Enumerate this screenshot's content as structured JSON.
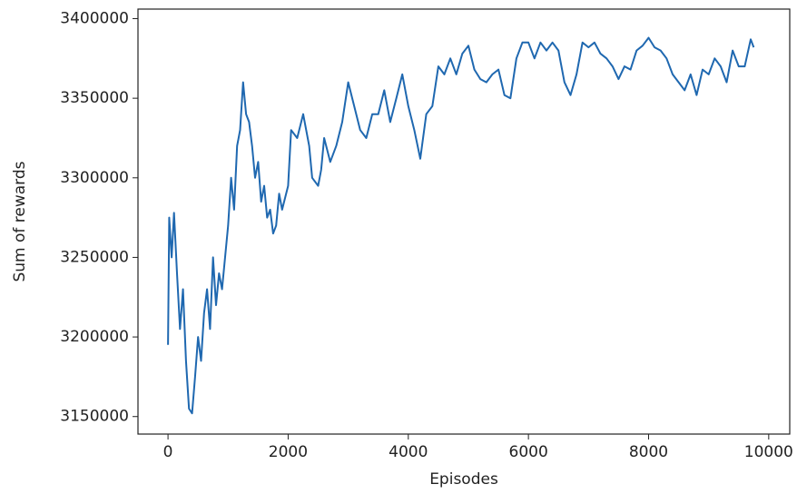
{
  "chart_data": {
    "type": "line",
    "xlabel": "Episodes",
    "ylabel": "Sum of rewards",
    "x": [
      0,
      20,
      60,
      100,
      150,
      200,
      250,
      300,
      350,
      400,
      450,
      500,
      550,
      600,
      650,
      700,
      750,
      800,
      850,
      900,
      1000,
      1050,
      1100,
      1150,
      1200,
      1250,
      1300,
      1350,
      1400,
      1450,
      1500,
      1550,
      1600,
      1650,
      1700,
      1750,
      1800,
      1850,
      1900,
      2000,
      2050,
      2150,
      2250,
      2300,
      2350,
      2400,
      2500,
      2550,
      2600,
      2700,
      2800,
      2900,
      3000,
      3100,
      3200,
      3300,
      3400,
      3500,
      3600,
      3700,
      3800,
      3900,
      4000,
      4100,
      4200,
      4300,
      4400,
      4500,
      4600,
      4700,
      4800,
      4900,
      5000,
      5100,
      5200,
      5300,
      5400,
      5500,
      5600,
      5700,
      5800,
      5900,
      6000,
      6100,
      6200,
      6300,
      6400,
      6500,
      6600,
      6700,
      6800,
      6900,
      7000,
      7100,
      7200,
      7300,
      7400,
      7500,
      7600,
      7700,
      7800,
      7900,
      8000,
      8100,
      8200,
      8300,
      8400,
      8500,
      8600,
      8700,
      8800,
      8900,
      9000,
      9100,
      9200,
      9300,
      9400,
      9500,
      9600,
      9700,
      9750
    ],
    "series": [
      {
        "color": "#1f68b0",
        "values": [
          3195000,
          3275000,
          3250000,
          3278000,
          3240000,
          3205000,
          3230000,
          3185000,
          3155000,
          3152000,
          3175000,
          3200000,
          3185000,
          3215000,
          3230000,
          3205000,
          3250000,
          3220000,
          3240000,
          3230000,
          3270000,
          3300000,
          3280000,
          3320000,
          3330000,
          3360000,
          3340000,
          3335000,
          3320000,
          3300000,
          3310000,
          3285000,
          3295000,
          3275000,
          3280000,
          3265000,
          3270000,
          3290000,
          3280000,
          3295000,
          3330000,
          3325000,
          3340000,
          3330000,
          3320000,
          3300000,
          3295000,
          3305000,
          3325000,
          3310000,
          3320000,
          3335000,
          3360000,
          3345000,
          3330000,
          3325000,
          3340000,
          3340000,
          3355000,
          3335000,
          3350000,
          3365000,
          3345000,
          3330000,
          3312000,
          3340000,
          3345000,
          3370000,
          3365000,
          3375000,
          3365000,
          3378000,
          3383000,
          3368000,
          3362000,
          3360000,
          3365000,
          3368000,
          3352000,
          3350000,
          3375000,
          3385000,
          3385000,
          3375000,
          3385000,
          3380000,
          3385000,
          3380000,
          3360000,
          3352000,
          3365000,
          3385000,
          3382000,
          3385000,
          3378000,
          3375000,
          3370000,
          3362000,
          3370000,
          3368000,
          3380000,
          3383000,
          3388000,
          3382000,
          3380000,
          3375000,
          3365000,
          3360000,
          3355000,
          3365000,
          3352000,
          3368000,
          3365000,
          3375000,
          3370000,
          3360000,
          3380000,
          3370000,
          3370000,
          3387000,
          3382000
        ]
      }
    ],
    "xlim": [
      -500,
      10350
    ],
    "xticks": [
      0,
      2000,
      4000,
      6000,
      8000,
      10000
    ],
    "ylim": [
      3139000,
      3406000
    ],
    "yticks": [
      3150000,
      3200000,
      3250000,
      3300000,
      3350000,
      3400000
    ]
  }
}
